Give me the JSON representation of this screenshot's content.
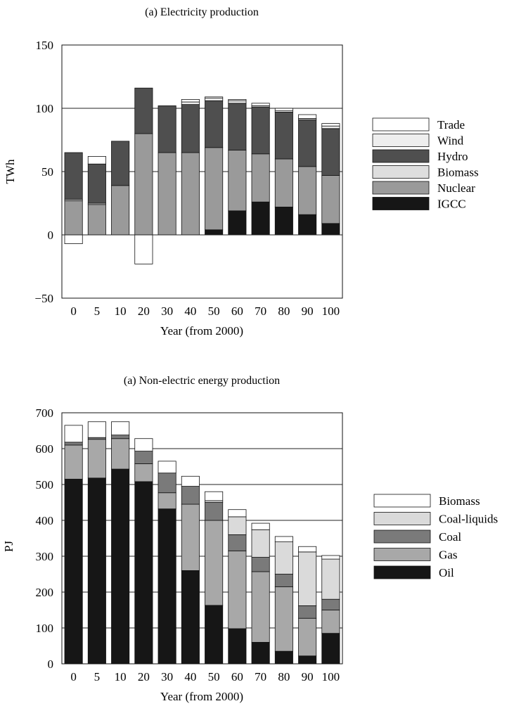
{
  "colors": {
    "IGCC": "#161616",
    "Nuclear": "#9a9a9a",
    "Biomass": "#dedede",
    "Hydro": "#4f4f4f",
    "Wind": "#eeeeee",
    "Trade": "#ffffff",
    "Oil": "#161616",
    "Gas": "#a8a8a8",
    "Coal": "#7a7a7a",
    "Coal-liquids": "#dadada",
    "Biomass2": "#ffffff"
  },
  "chart_data": [
    {
      "type": "bar",
      "stacked": true,
      "title": "(a) Electricity production",
      "xlabel": "Year (from 2000)",
      "ylabel": "TWh",
      "ylim": [
        -50,
        150
      ],
      "yticks": [
        "150",
        "100",
        "50",
        "0",
        "−50"
      ],
      "yticks_values": [
        150,
        100,
        50,
        0,
        -50
      ],
      "grid": "horizontal at 50 and 100",
      "legend_position": "right",
      "categories": [
        "0",
        "5",
        "10",
        "20",
        "30",
        "40",
        "50",
        "60",
        "70",
        "80",
        "90",
        "100"
      ],
      "series": [
        {
          "name": "IGCC",
          "color_key": "IGCC",
          "values": [
            0,
            0,
            0,
            0,
            0,
            0,
            4,
            19,
            26,
            22,
            16,
            9
          ]
        },
        {
          "name": "Nuclear",
          "color_key": "Nuclear",
          "values": [
            27,
            24,
            39,
            80,
            65,
            65,
            65,
            48,
            38,
            38,
            38,
            38
          ]
        },
        {
          "name": "Biomass",
          "color_key": "Biomass",
          "values": [
            1,
            1,
            0,
            0,
            0,
            0,
            0,
            0,
            0,
            0,
            0,
            0
          ]
        },
        {
          "name": "Hydro",
          "color_key": "Hydro",
          "values": [
            37,
            31,
            35,
            36,
            37,
            38,
            37,
            37,
            37,
            37,
            37,
            37
          ]
        },
        {
          "name": "Wind",
          "color_key": "Wind",
          "values": [
            0,
            0,
            0,
            0,
            0,
            2,
            2,
            2,
            1,
            1,
            1,
            2
          ]
        },
        {
          "name": "Trade",
          "color_key": "Trade",
          "values": [
            -7,
            6,
            0,
            -23,
            0,
            2,
            1,
            1,
            2,
            2,
            3,
            2
          ]
        }
      ],
      "legend": [
        {
          "name": "Trade",
          "color_key": "Trade"
        },
        {
          "name": "Wind",
          "color_key": "Wind"
        },
        {
          "name": "Hydro",
          "color_key": "Hydro"
        },
        {
          "name": "Biomass",
          "color_key": "Biomass"
        },
        {
          "name": "Nuclear",
          "color_key": "Nuclear"
        },
        {
          "name": "IGCC",
          "color_key": "IGCC"
        }
      ]
    },
    {
      "type": "bar",
      "stacked": true,
      "title": "(a) Non-electric energy production",
      "xlabel": "Year (from 2000)",
      "ylabel": "PJ",
      "ylim": [
        0,
        700
      ],
      "yticks": [
        "700",
        "600",
        "500",
        "400",
        "300",
        "200",
        "100",
        "0"
      ],
      "yticks_values": [
        700,
        600,
        500,
        400,
        300,
        200,
        100,
        0
      ],
      "grid": "horizontal every 100",
      "legend_position": "right",
      "categories": [
        "0",
        "5",
        "10",
        "20",
        "30",
        "40",
        "50",
        "60",
        "70",
        "80",
        "90",
        "100"
      ],
      "series": [
        {
          "name": "Oil",
          "color_key": "Oil",
          "values": [
            515,
            518,
            543,
            508,
            432,
            260,
            163,
            98,
            60,
            35,
            22,
            85
          ]
        },
        {
          "name": "Gas",
          "color_key": "Gas",
          "values": [
            95,
            108,
            85,
            50,
            45,
            185,
            237,
            217,
            197,
            180,
            105,
            65
          ]
        },
        {
          "name": "Coal",
          "color_key": "Coal",
          "values": [
            8,
            5,
            10,
            35,
            55,
            50,
            50,
            45,
            40,
            35,
            35,
            30
          ]
        },
        {
          "name": "Coal-liquids",
          "color_key": "Coal-liquids",
          "values": [
            0,
            0,
            0,
            0,
            0,
            0,
            5,
            50,
            77,
            90,
            150,
            112
          ]
        },
        {
          "name": "Biomass",
          "color_key": "Biomass2",
          "values": [
            47,
            44,
            37,
            35,
            33,
            28,
            25,
            20,
            18,
            15,
            15,
            10
          ]
        }
      ],
      "legend": [
        {
          "name": "Biomass",
          "color_key": "Biomass2"
        },
        {
          "name": "Coal-liquids",
          "color_key": "Coal-liquids"
        },
        {
          "name": "Coal",
          "color_key": "Coal"
        },
        {
          "name": "Gas",
          "color_key": "Gas"
        },
        {
          "name": "Oil",
          "color_key": "Oil"
        }
      ]
    }
  ]
}
